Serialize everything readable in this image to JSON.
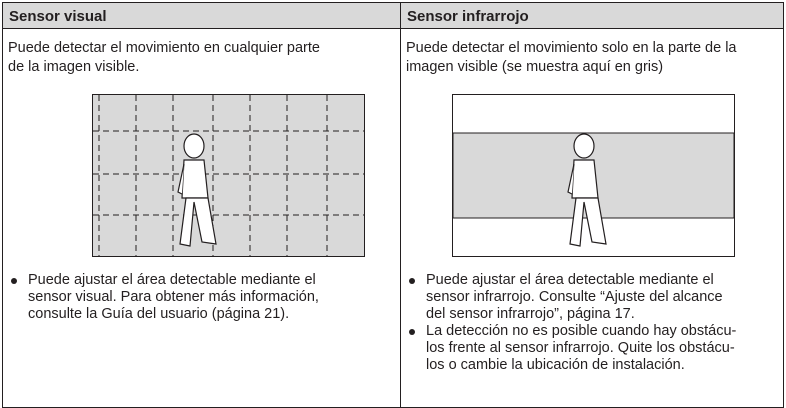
{
  "table": {
    "headers": [
      "Sensor visual",
      "Sensor infrarrojo"
    ],
    "rows": [
      [
        {
          "description": [
            "Puede detectar el movimiento en cualquier parte",
            "de la imagen visible."
          ],
          "bullets": [
            [
              "Puede ajustar el área detectable mediante el",
              "sensor visual. Para obtener más información,",
              "consulte la Guía del usuario (página 21)."
            ]
          ]
        },
        {
          "description": [
            "Puede detectar el movimiento solo en la parte de la",
            "imagen visible (se muestra aquí en gris)"
          ],
          "bullets": [
            [
              "Puede ajustar el área detectable mediante el",
              "sensor infrarrojo. Consulte “Ajuste del alcance",
              "del sensor infrarrojo”, página 17."
            ],
            [
              "La detección no es posible cuando hay obstácu-",
              "los frente al sensor infrarrojo. Quite los obstácu-",
              "los o cambie la ubicación de instalación."
            ]
          ]
        }
      ]
    ]
  }
}
